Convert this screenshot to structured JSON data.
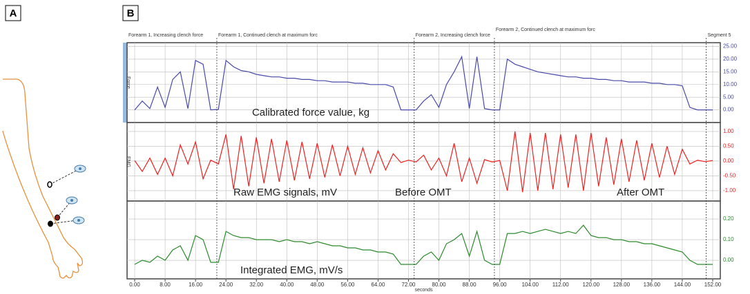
{
  "panels": {
    "a": "A",
    "b": "B"
  },
  "events": [
    {
      "time": -2,
      "label": "Forearm 1, Increasing clench force"
    },
    {
      "time": 21.6,
      "label": "Forearm 1, Continued clench at maximum forc"
    },
    {
      "time": 73.5,
      "label": "Forearm 2, Increasing clench force"
    },
    {
      "time": 94.6,
      "label": "Forearm 2, Continued clench at maximum forc"
    },
    {
      "time": 150.3,
      "label": "Segment 5"
    }
  ],
  "chart_data": [
    {
      "type": "line",
      "channel": "Force",
      "color": "#4848a8",
      "annotations": [
        "Calibrated force value, kg"
      ],
      "x": [
        0,
        2,
        4,
        6,
        8,
        10,
        12,
        14,
        16,
        18,
        20,
        22,
        24,
        26,
        28,
        30,
        32,
        34,
        36,
        38,
        40,
        42,
        44,
        46,
        48,
        50,
        52,
        54,
        56,
        58,
        60,
        62,
        64,
        66,
        68,
        70,
        72,
        74,
        76,
        78,
        80,
        82,
        84,
        86,
        88,
        90,
        92,
        94,
        96,
        98,
        100,
        102,
        104,
        106,
        108,
        110,
        112,
        114,
        116,
        118,
        120,
        122,
        124,
        126,
        128,
        130,
        132,
        134,
        136,
        138,
        140,
        142,
        144,
        146,
        148,
        150,
        152
      ],
      "values": [
        0,
        3.5,
        0.5,
        9,
        1,
        12,
        15,
        0.5,
        19.5,
        18,
        0,
        0.2,
        19.5,
        17,
        15.5,
        15,
        14,
        13.5,
        13,
        13,
        12.5,
        12.5,
        12,
        12,
        11.5,
        11.5,
        11,
        11,
        11,
        10.5,
        10.5,
        10,
        10,
        10,
        9,
        0,
        0,
        0,
        3.5,
        6,
        1,
        10,
        15,
        21,
        0.5,
        21,
        0.5,
        0,
        0,
        20,
        18,
        17,
        16,
        15,
        14.5,
        14,
        13.5,
        13,
        13,
        12.5,
        12.5,
        12,
        12,
        11.5,
        11.5,
        11,
        11,
        11,
        10.5,
        10.5,
        10,
        10,
        9.5,
        1,
        0,
        0,
        0
      ],
      "xlim": [
        -2,
        154
      ],
      "ylim": [
        -5,
        26.5
      ],
      "yticks": [
        {
          "value": 0,
          "label": "0.00"
        },
        {
          "value": 5,
          "label": "5.00"
        },
        {
          "value": 10,
          "label": "10.00"
        },
        {
          "value": 15,
          "label": "15.00"
        },
        {
          "value": 20,
          "label": "20.00"
        },
        {
          "value": 25,
          "label": "25.00"
        }
      ],
      "grid": true
    },
    {
      "type": "line",
      "channel": "EMG",
      "color": "#ee2020",
      "annotations": [
        "Raw EMG signals, mV",
        "Before OMT",
        "After OMT"
      ],
      "x": [
        0,
        2,
        4,
        6,
        8,
        10,
        12,
        14,
        16,
        18,
        20,
        22,
        24,
        26,
        28,
        30,
        32,
        34,
        36,
        38,
        40,
        42,
        44,
        46,
        48,
        50,
        52,
        54,
        56,
        58,
        60,
        62,
        64,
        66,
        68,
        70,
        72,
        74,
        76,
        78,
        80,
        82,
        84,
        86,
        88,
        90,
        92,
        94,
        96,
        98,
        100,
        102,
        104,
        106,
        108,
        110,
        112,
        114,
        116,
        118,
        120,
        122,
        124,
        126,
        128,
        130,
        132,
        134,
        136,
        138,
        140,
        142,
        144,
        146,
        148,
        150,
        152
      ],
      "values": [
        0.02,
        -0.35,
        0.1,
        -0.45,
        0.1,
        -0.5,
        0.55,
        -0.1,
        0.65,
        -0.6,
        0.03,
        -0.1,
        0.9,
        -0.95,
        0.85,
        -0.85,
        0.8,
        -0.75,
        0.75,
        -0.7,
        0.7,
        -0.65,
        0.65,
        -0.6,
        0.6,
        -0.55,
        0.55,
        -0.5,
        0.5,
        -0.45,
        0.45,
        -0.4,
        0.35,
        -0.3,
        0.25,
        -0.05,
        0.03,
        -0.03,
        0.2,
        -0.3,
        0.1,
        -0.5,
        0.6,
        -0.7,
        0.1,
        -0.75,
        0.05,
        -0.03,
        0.02,
        -1.0,
        1.0,
        -1.05,
        0.95,
        -1.0,
        0.95,
        -0.95,
        0.9,
        -0.9,
        0.9,
        -1.0,
        0.95,
        -0.85,
        0.8,
        -0.8,
        0.75,
        -0.7,
        0.7,
        -0.65,
        0.6,
        -0.55,
        0.5,
        -0.45,
        0.4,
        -0.1,
        0.03,
        -0.02,
        0.02
      ],
      "xlim": [
        -2,
        154
      ],
      "ylim": [
        -1.35,
        1.3
      ],
      "yticks": [
        {
          "value": 1,
          "label": "1.00"
        },
        {
          "value": 0.5,
          "label": "0.50"
        },
        {
          "value": 0,
          "label": "0.00"
        },
        {
          "value": -0.5,
          "label": "-0.50"
        },
        {
          "value": -1,
          "label": "-1.00"
        }
      ],
      "grid": true
    },
    {
      "type": "line",
      "color": "#2a8a2a",
      "annotations": [
        "Integrated EMG, mV/s"
      ],
      "x_label": "seconds",
      "x": [
        0,
        2,
        4,
        6,
        8,
        10,
        12,
        14,
        16,
        18,
        20,
        22,
        24,
        26,
        28,
        30,
        32,
        34,
        36,
        38,
        40,
        42,
        44,
        46,
        48,
        50,
        52,
        54,
        56,
        58,
        60,
        62,
        64,
        66,
        68,
        70,
        72,
        74,
        76,
        78,
        80,
        82,
        84,
        86,
        88,
        90,
        92,
        94,
        96,
        98,
        100,
        102,
        104,
        106,
        108,
        110,
        112,
        114,
        116,
        118,
        120,
        122,
        124,
        126,
        128,
        130,
        132,
        134,
        136,
        138,
        140,
        142,
        144,
        146,
        148,
        150,
        152
      ],
      "values": [
        -0.02,
        0,
        -0.01,
        0.02,
        0,
        0.05,
        0.07,
        0,
        0.12,
        0.1,
        -0.01,
        -0.01,
        0.14,
        0.12,
        0.11,
        0.11,
        0.1,
        0.1,
        0.1,
        0.09,
        0.1,
        0.09,
        0.09,
        0.08,
        0.09,
        0.08,
        0.07,
        0.07,
        0.06,
        0.06,
        0.05,
        0.05,
        0.04,
        0.04,
        0.03,
        -0.02,
        -0.02,
        -0.02,
        0.02,
        0.04,
        0,
        0.08,
        0.1,
        0.13,
        0.02,
        0.14,
        0,
        -0.02,
        -0.02,
        0.13,
        0.13,
        0.14,
        0.13,
        0.14,
        0.15,
        0.14,
        0.13,
        0.14,
        0.13,
        0.17,
        0.12,
        0.11,
        0.11,
        0.1,
        0.1,
        0.09,
        0.09,
        0.08,
        0.08,
        0.07,
        0.06,
        0.05,
        0.04,
        0,
        -0.02,
        -0.02,
        -0.02
      ],
      "xlim": [
        -2,
        154
      ],
      "ylim": [
        -0.09,
        0.287
      ],
      "yticks": [
        {
          "value": 0,
          "label": "0.00"
        },
        {
          "value": 0.1,
          "label": "0.10"
        },
        {
          "value": 0.2,
          "label": "0.20"
        }
      ],
      "xticks": [
        {
          "value": 0,
          "label": "0.00"
        },
        {
          "value": 8,
          "label": "8.00"
        },
        {
          "value": 16,
          "label": "16.00"
        },
        {
          "value": 24,
          "label": "24.00"
        },
        {
          "value": 32,
          "label": "32.00"
        },
        {
          "value": 40,
          "label": "40.00"
        },
        {
          "value": 48,
          "label": "48.00"
        },
        {
          "value": 56,
          "label": "56.00"
        },
        {
          "value": 64,
          "label": "64.00"
        },
        {
          "value": 72,
          "label": "72.00"
        },
        {
          "value": 80,
          "label": "80.00"
        },
        {
          "value": 88,
          "label": "88.00"
        },
        {
          "value": 96,
          "label": "96.00"
        },
        {
          "value": 104,
          "label": "104.00"
        },
        {
          "value": 112,
          "label": "112.00"
        },
        {
          "value": 120,
          "label": "120.00"
        },
        {
          "value": 128,
          "label": "128.00"
        },
        {
          "value": 136,
          "label": "136.00"
        },
        {
          "value": 144,
          "label": "144.00"
        },
        {
          "value": 152,
          "label": "152.00"
        }
      ],
      "grid": true
    }
  ]
}
